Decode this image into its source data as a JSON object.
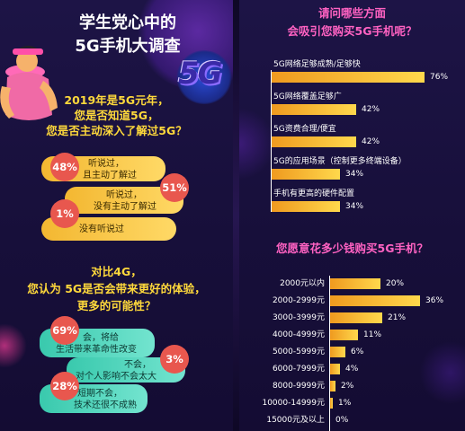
{
  "left": {
    "title_line1": "学生党心中的",
    "title_line2": "5G手机大调查",
    "badge": "5G",
    "q1": {
      "line1": "2019年是5G元年，",
      "line2": "您是否知道5G，",
      "line3": "您是否主动深入了解过5G？",
      "answers": [
        {
          "pct": "48%",
          "line1": "听说过，",
          "line2": "且主动了解过"
        },
        {
          "pct": "51%",
          "line1": "听说过，",
          "line2": "没有主动了解过"
        },
        {
          "pct": "1%",
          "line1": "没有听说过",
          "line2": ""
        }
      ]
    },
    "q2": {
      "line1": "对比4G，",
      "line2": "您认为 5G是否会带来更好的体验，",
      "line3": "更多的可能性？",
      "answers": [
        {
          "pct": "69%",
          "line1": "会，将给",
          "line2": "生活带来革命性改变"
        },
        {
          "pct": "3%",
          "line1": "不会，",
          "line2": "对个人影响不会太大"
        },
        {
          "pct": "28%",
          "line1": "短期不会，",
          "line2": "技术还很不成熟"
        }
      ]
    }
  },
  "right": {
    "q3_line1": "请问哪些方面",
    "q3_line2": "会吸引您购买5G手机呢？",
    "q4": "您愿意花多少钱购买5G手机？"
  },
  "chart_data": [
    {
      "type": "bar",
      "orientation": "horizontal",
      "title": "请问哪些方面会吸引您购买5G手机呢？",
      "categories": [
        "5G网络足够成熟/足够快",
        "5G网络覆盖足够广",
        "5G资费合理/便宜",
        "5G的应用场景（控制更多终端设备）",
        "手机有更高的硬件配置"
      ],
      "values": [
        76,
        42,
        42,
        34,
        34
      ],
      "labels": [
        "76%",
        "42%",
        "42%",
        "34%",
        "34%"
      ],
      "unit": "%"
    },
    {
      "type": "bar",
      "orientation": "horizontal",
      "title": "您愿意花多少钱购买5G手机？",
      "categories": [
        "2000元以内",
        "2000-2999元",
        "3000-3999元",
        "4000-4999元",
        "5000-5999元",
        "6000-7999元",
        "8000-9999元",
        "10000-14999元",
        "15000元及以上"
      ],
      "values": [
        20,
        36,
        21,
        11,
        6,
        4,
        2,
        1,
        0
      ],
      "labels": [
        "20%",
        "36%",
        "21%",
        "11%",
        "6%",
        "4%",
        "2%",
        "1%",
        "0%"
      ],
      "unit": "%"
    }
  ],
  "colors": {
    "background": "#1a1240",
    "bar": "#f5b82e",
    "question": "#ffd93b",
    "question_pink": "#ff62c2",
    "bubble_yellow": "#f3b731",
    "bubble_teal": "#39c9ad",
    "circle": "#e8574e"
  }
}
